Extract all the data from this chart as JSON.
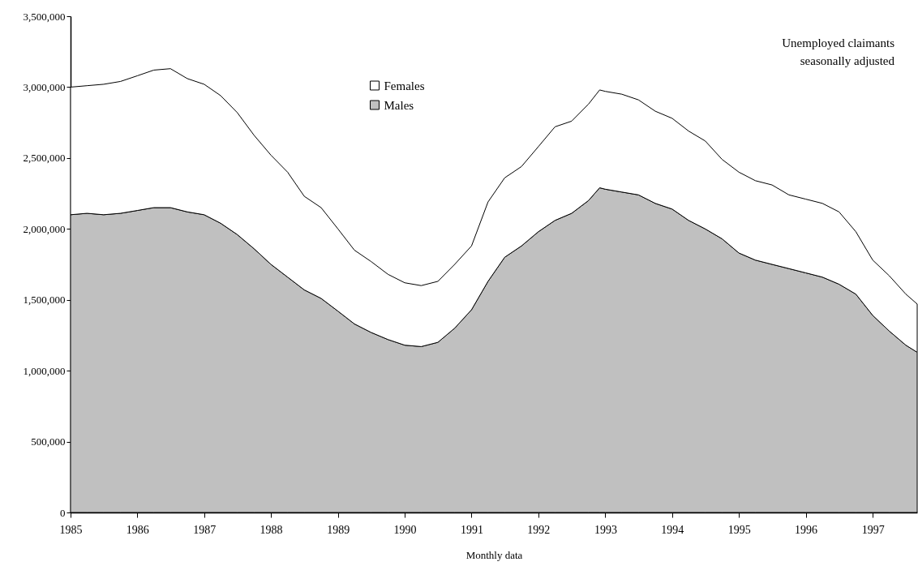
{
  "chart_data": {
    "type": "area",
    "stacked": true,
    "xlabel": "Monthly data",
    "annotations": [
      "Unemployed claimants\nseasonally adjusted"
    ],
    "legend": "top",
    "grid": false,
    "x": [
      "1985-01",
      "1985-04",
      "1985-07",
      "1985-10",
      "1986-01",
      "1986-04",
      "1986-07",
      "1986-10",
      "1987-01",
      "1987-04",
      "1987-07",
      "1987-10",
      "1988-01",
      "1988-04",
      "1988-07",
      "1988-10",
      "1989-01",
      "1989-04",
      "1989-07",
      "1989-10",
      "1990-01",
      "1990-04",
      "1990-07",
      "1990-10",
      "1991-01",
      "1991-04",
      "1991-07",
      "1991-10",
      "1992-01",
      "1992-04",
      "1992-07",
      "1992-10",
      "1992-12",
      "1993-01",
      "1993-04",
      "1993-07",
      "1993-10",
      "1994-01",
      "1994-04",
      "1994-07",
      "1994-10",
      "1995-01",
      "1995-04",
      "1995-07",
      "1995-10",
      "1996-01",
      "1996-04",
      "1996-07",
      "1996-10",
      "1997-01",
      "1997-04",
      "1997-07",
      "1997-09"
    ],
    "series": [
      {
        "name": "Males",
        "color": "#c0c0c0",
        "values": [
          2100000,
          2110000,
          2100000,
          2110000,
          2130000,
          2150000,
          2150000,
          2120000,
          2100000,
          2040000,
          1960000,
          1860000,
          1750000,
          1660000,
          1570000,
          1510000,
          1420000,
          1330000,
          1270000,
          1220000,
          1180000,
          1170000,
          1200000,
          1300000,
          1430000,
          1630000,
          1800000,
          1880000,
          1980000,
          2060000,
          2110000,
          2200000,
          2290000,
          2280000,
          2260000,
          2240000,
          2180000,
          2140000,
          2060000,
          2000000,
          1930000,
          1830000,
          1780000,
          1750000,
          1720000,
          1690000,
          1660000,
          1610000,
          1540000,
          1390000,
          1280000,
          1180000,
          1130000
        ]
      },
      {
        "name": "Females",
        "color": "#ffffff",
        "values": [
          900000,
          900000,
          920000,
          930000,
          950000,
          970000,
          980000,
          940000,
          920000,
          900000,
          860000,
          800000,
          770000,
          740000,
          660000,
          640000,
          580000,
          520000,
          500000,
          460000,
          440000,
          430000,
          430000,
          450000,
          450000,
          560000,
          560000,
          560000,
          600000,
          660000,
          650000,
          680000,
          690000,
          690000,
          690000,
          670000,
          650000,
          640000,
          630000,
          620000,
          560000,
          570000,
          560000,
          560000,
          520000,
          520000,
          520000,
          510000,
          440000,
          390000,
          390000,
          360000,
          340000
        ]
      }
    ],
    "xlim": [
      "1985-01",
      "1997-09"
    ],
    "xticks": [
      "1985",
      "1986",
      "1987",
      "1988",
      "1989",
      "1990",
      "1991",
      "1992",
      "1993",
      "1994",
      "1995",
      "1996",
      "1997"
    ],
    "ylim": [
      0,
      3500000
    ],
    "yticks": [
      0,
      {
        "value": 500000,
        "label": "500,000"
      },
      {
        "value": 1000000,
        "label": "1,000,000"
      },
      {
        "value": 1500000,
        "label": "1,500,000"
      },
      {
        "value": 2000000,
        "label": "2,000,000"
      },
      {
        "value": 2500000,
        "label": "2,500,000"
      },
      {
        "value": 3000000,
        "label": "3,000,000"
      },
      {
        "value": 3500000,
        "label": "3,500,000"
      }
    ]
  }
}
